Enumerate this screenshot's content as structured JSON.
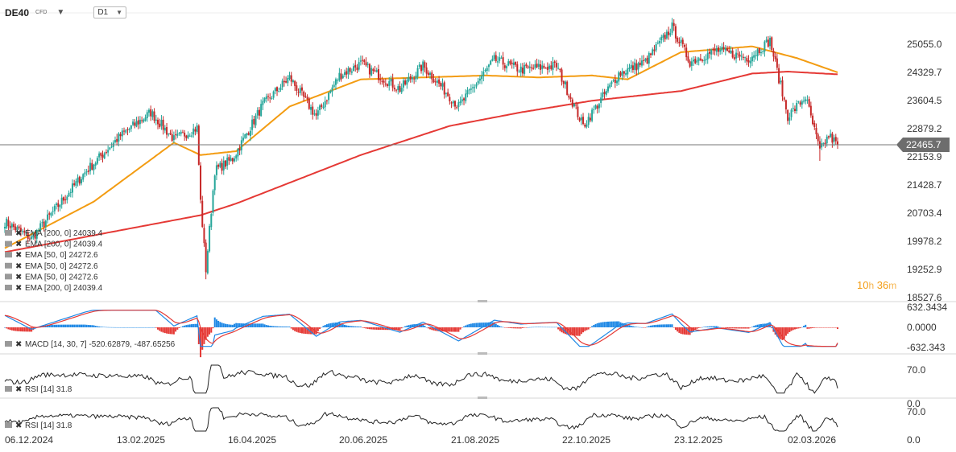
{
  "header": {
    "symbol": "DE40",
    "symbol_type": "CFD",
    "timeframe": "D1"
  },
  "countdown": {
    "hours": "10",
    "h_unit": "h",
    "minutes": "36",
    "m_unit": "m"
  },
  "colors": {
    "up": "#26a69a",
    "down": "#c62828",
    "ema50": "#f39c12",
    "ema200": "#e53935",
    "macd": "#1e88e5",
    "signal": "#e53935",
    "rsi": "#222222",
    "price_tag_bg": "#6d6d6d",
    "hist_pos": "#1e88e5",
    "hist_neg": "#e53935"
  },
  "chart_data": [
    {
      "type": "candlestick",
      "name": "price",
      "ylim": [
        18527.6,
        25600
      ],
      "y_ticks": [
        "25055.0",
        "24329.7",
        "23604.5",
        "22879.2",
        "22153.9",
        "21428.7",
        "20703.4",
        "19978.2",
        "19252.9",
        "18527.6"
      ],
      "x_ticks": [
        "06.12.2024",
        "13.02.2025",
        "16.04.2025",
        "20.06.2025",
        "21.08.2025",
        "22.10.2025",
        "23.12.2025",
        "02.03.2026"
      ],
      "last_price": "22465.7",
      "anchors": [
        [
          0,
          20480
        ],
        [
          15,
          20050
        ],
        [
          45,
          21750
        ],
        [
          65,
          22700
        ],
        [
          82,
          23300
        ],
        [
          95,
          22600
        ],
        [
          108,
          22900
        ],
        [
          110,
          21000
        ],
        [
          113,
          19250
        ],
        [
          118,
          21800
        ],
        [
          128,
          22100
        ],
        [
          145,
          23500
        ],
        [
          160,
          24200
        ],
        [
          175,
          23200
        ],
        [
          188,
          24250
        ],
        [
          200,
          24550
        ],
        [
          222,
          23900
        ],
        [
          235,
          24500
        ],
        [
          255,
          23450
        ],
        [
          275,
          24650
        ],
        [
          290,
          24400
        ],
        [
          310,
          24500
        ],
        [
          325,
          22950
        ],
        [
          345,
          24300
        ],
        [
          360,
          24600
        ],
        [
          375,
          25500
        ],
        [
          385,
          24600
        ],
        [
          400,
          24900
        ],
        [
          418,
          24700
        ],
        [
          430,
          25150
        ],
        [
          440,
          23200
        ],
        [
          450,
          23700
        ],
        [
          458,
          22300
        ],
        [
          463,
          22700
        ],
        [
          468,
          22470
        ]
      ],
      "ema_series": [
        {
          "label": "EMA [50, 0]",
          "value": "24272.6",
          "anchors": [
            [
              0,
              19800
            ],
            [
              50,
              21000
            ],
            [
              95,
              22520
            ],
            [
              110,
              22200
            ],
            [
              130,
              22300
            ],
            [
              160,
              23450
            ],
            [
              200,
              24150
            ],
            [
              270,
              24250
            ],
            [
              300,
              24200
            ],
            [
              330,
              24250
            ],
            [
              350,
              24150
            ],
            [
              380,
              24850
            ],
            [
              420,
              25000
            ],
            [
              445,
              24700
            ],
            [
              468,
              24330
            ]
          ]
        },
        {
          "label": "EMA [200, 0]",
          "value": "24039.4",
          "anchors": [
            [
              0,
              19700
            ],
            [
              110,
              20650
            ],
            [
              130,
              20950
            ],
            [
              200,
              22200
            ],
            [
              250,
              22950
            ],
            [
              290,
              23300
            ],
            [
              330,
              23600
            ],
            [
              380,
              23850
            ],
            [
              420,
              24300
            ],
            [
              440,
              24350
            ],
            [
              468,
              24280
            ]
          ]
        }
      ]
    },
    {
      "type": "macd",
      "label": "MACD [14, 30, 7]",
      "macd_value": "-520.62879",
      "signal_value": "-487.65256",
      "ylim": [
        -632.343,
        632.3434
      ],
      "y_ticks": [
        "632.3434",
        "0.0000",
        "-632.343"
      ]
    },
    {
      "type": "rsi",
      "label": "RSI [14]",
      "value": "31.8",
      "ylim": [
        0,
        100
      ],
      "y_ticks": [
        "70.0",
        "0.0"
      ]
    },
    {
      "type": "rsi",
      "label": "RSI [14]",
      "value": "31.8",
      "ylim": [
        0,
        100
      ],
      "y_ticks": [
        "70.0",
        "0.0"
      ]
    }
  ],
  "legend_rows": [
    {
      "label": "EMA [200, 0]",
      "value": "24039.4"
    },
    {
      "label": "EMA [200, 0]",
      "value": "24039.4"
    },
    {
      "label": "EMA [50, 0]",
      "value": "24272.6"
    },
    {
      "label": "EMA [50, 0]",
      "value": "24272.6"
    },
    {
      "label": "EMA [50, 0]",
      "value": "24272.6"
    },
    {
      "label": "EMA [200, 0]",
      "value": "24039.4"
    }
  ]
}
